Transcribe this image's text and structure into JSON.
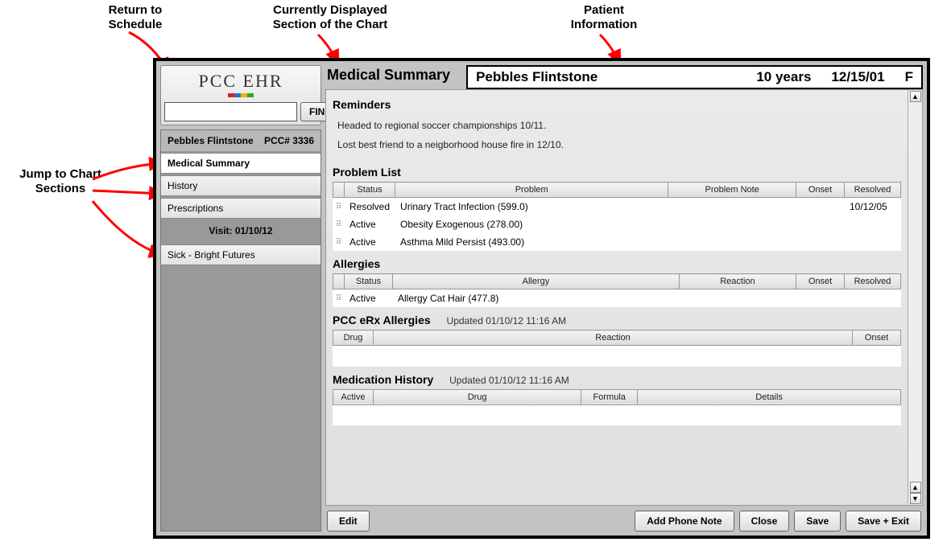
{
  "annotations": {
    "return_schedule": "Return to\nSchedule",
    "current_section": "Currently Displayed\nSection of the Chart",
    "patient_info": "Patient\nInformation",
    "jump_sections": "Jump to Chart\nSections"
  },
  "logo": {
    "text": "PCC EHR",
    "stripe_colors": [
      "#d22",
      "#2a6fd6",
      "#e6b800",
      "#2aa52a"
    ]
  },
  "find": {
    "value": "",
    "button": "FIND"
  },
  "patient_sidebar": {
    "name": "Pebbles Flintstone",
    "id_label": "PCC# 3336"
  },
  "nav": {
    "items": [
      {
        "label": "Medical Summary",
        "active": true
      },
      {
        "label": "History",
        "active": false
      },
      {
        "label": "Prescriptions",
        "active": false
      }
    ],
    "visit_label": "Visit: 01/10/12",
    "visit_items": [
      {
        "label": "Sick - Bright Futures"
      }
    ]
  },
  "main": {
    "title": "Medical Summary"
  },
  "patient_bar": {
    "name": "Pebbles Flintstone",
    "age": "10 years",
    "dob": "12/15/01",
    "sex": "F"
  },
  "reminders": {
    "title": "Reminders",
    "lines": [
      "Headed to regional soccer championships 10/11.",
      "Lost best friend to a neigborhood house fire in 12/10."
    ]
  },
  "problem_list": {
    "title": "Problem List",
    "columns": [
      "",
      "Status",
      "Problem",
      "Problem Note",
      "Onset",
      "Resolved"
    ],
    "rows": [
      {
        "status": "Resolved",
        "problem": "Urinary Tract Infection (599.0)",
        "note": "",
        "onset": "",
        "resolved": "10/12/05"
      },
      {
        "status": "Active",
        "problem": "Obesity Exogenous (278.00)",
        "note": "",
        "onset": "",
        "resolved": ""
      },
      {
        "status": "Active",
        "problem": "Asthma Mild Persist (493.00)",
        "note": "",
        "onset": "",
        "resolved": ""
      }
    ]
  },
  "allergies": {
    "title": "Allergies",
    "columns": [
      "",
      "Status",
      "Allergy",
      "Reaction",
      "Onset",
      "Resolved"
    ],
    "rows": [
      {
        "status": "Active",
        "allergy": "Allergy Cat Hair (477.8)",
        "reaction": "",
        "onset": "",
        "resolved": ""
      }
    ]
  },
  "erx_allergies": {
    "title": "PCC eRx Allergies",
    "updated": "Updated 01/10/12 11:16 AM",
    "columns": [
      "Drug",
      "Reaction",
      "Onset"
    ]
  },
  "med_history": {
    "title": "Medication History",
    "updated": "Updated 01/10/12 11:16 AM",
    "columns": [
      "Active",
      "Drug",
      "Formula",
      "Details"
    ]
  },
  "buttons": {
    "edit": "Edit",
    "add_phone_note": "Add Phone Note",
    "close": "Close",
    "save": "Save",
    "save_exit": "Save + Exit"
  },
  "colors": {
    "window_bg": "#c3c3c3",
    "arrow": "#ff0000"
  }
}
